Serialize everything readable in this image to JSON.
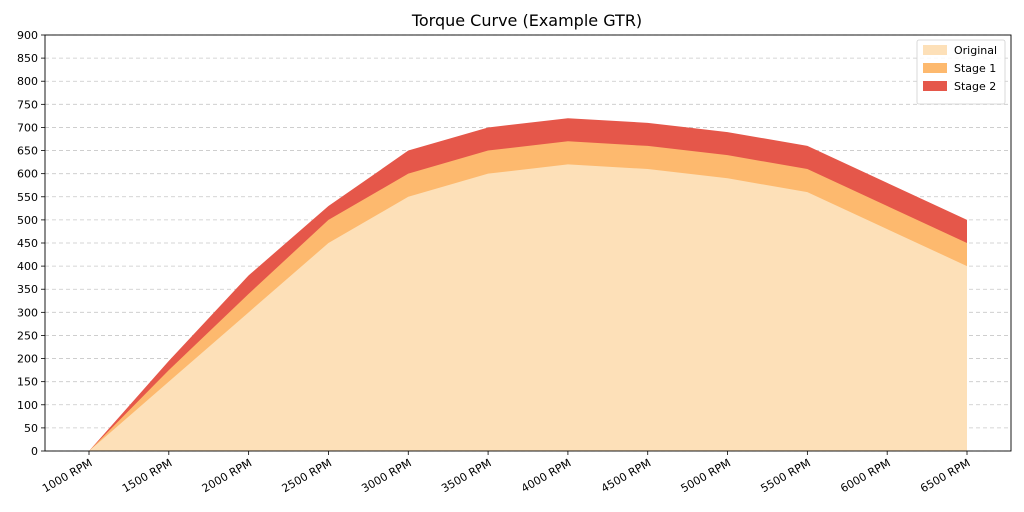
{
  "chart_data": {
    "type": "area",
    "title": "Torque Curve (Example GTR)",
    "xlabel": "",
    "ylabel": "",
    "categories": [
      "1000 RPM",
      "1500 RPM",
      "2000 RPM",
      "2500 RPM",
      "3000 RPM",
      "3500 RPM",
      "4000 RPM",
      "4500 RPM",
      "5000 RPM",
      "5500 RPM",
      "6000 RPM",
      "6500 RPM"
    ],
    "ylim": [
      0,
      900
    ],
    "yticks": [
      0,
      50,
      100,
      150,
      200,
      250,
      300,
      350,
      400,
      450,
      500,
      550,
      600,
      650,
      700,
      750,
      800,
      850,
      900
    ],
    "grid": "horizontal dashed",
    "legend_position": "top-right",
    "series": [
      {
        "name": "Original",
        "color": "#fde0b8",
        "values": [
          0,
          150,
          300,
          450,
          550,
          600,
          620,
          610,
          590,
          560,
          480,
          400
        ]
      },
      {
        "name": "Stage 1",
        "color": "#fdb96e",
        "values": [
          0,
          175,
          340,
          500,
          600,
          650,
          670,
          660,
          640,
          610,
          530,
          450
        ]
      },
      {
        "name": "Stage 2",
        "color": "#e5574a",
        "values": [
          0,
          195,
          380,
          530,
          650,
          700,
          720,
          710,
          690,
          660,
          580,
          500
        ]
      }
    ]
  }
}
